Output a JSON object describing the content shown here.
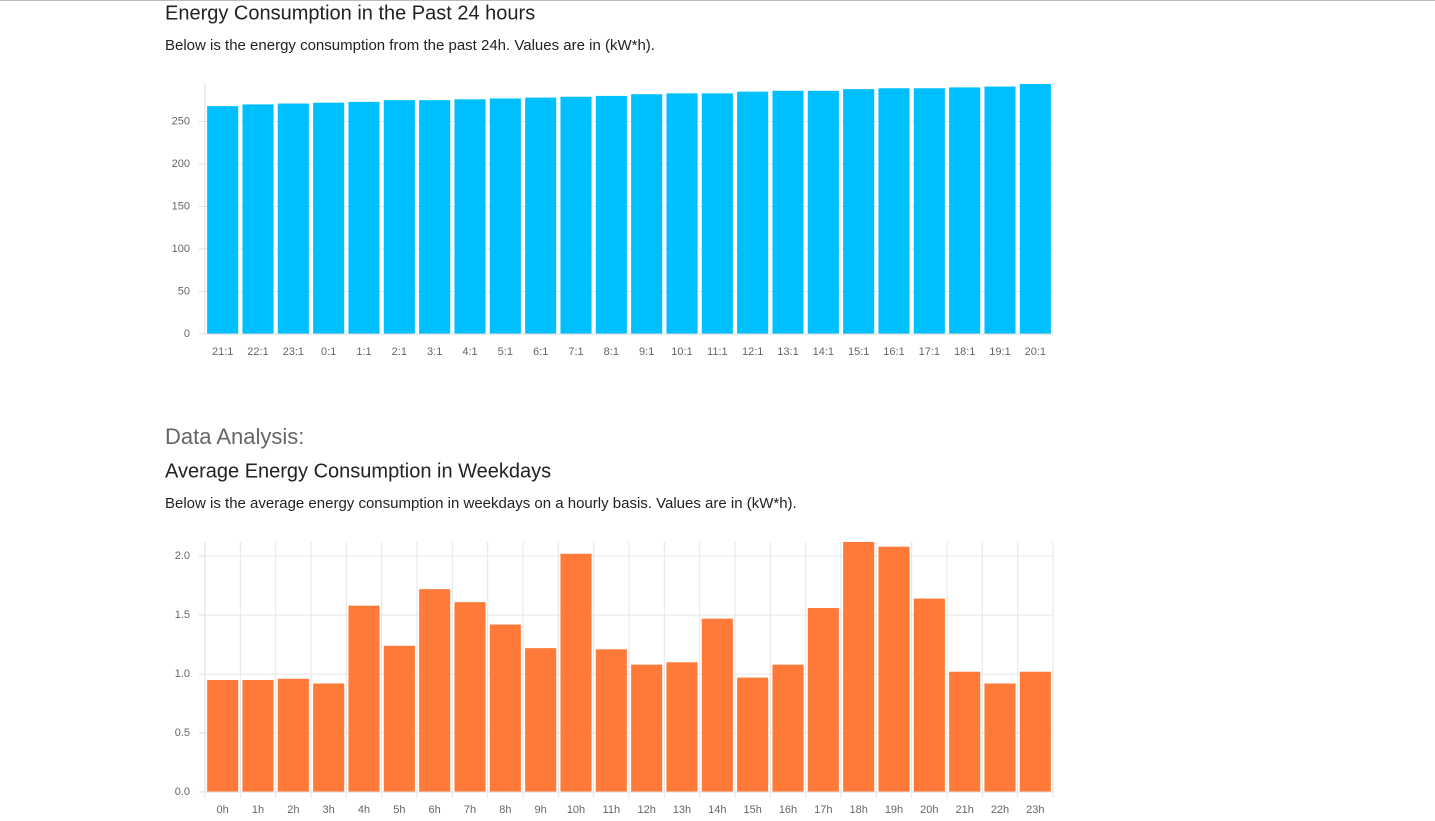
{
  "section_heading": "Data Analysis:",
  "chart_data": [
    {
      "type": "bar",
      "title": "Energy Consumption in the Past 24 hours",
      "subtitle": "Below is the energy consumption from the past 24h. Values are in (kW*h).",
      "categories": [
        "21:1",
        "22:1",
        "23:1",
        "0:1",
        "1:1",
        "2:1",
        "3:1",
        "4:1",
        "5:1",
        "6:1",
        "7:1",
        "8:1",
        "9:1",
        "10:1",
        "11:1",
        "12:1",
        "13:1",
        "14:1",
        "15:1",
        "16:1",
        "17:1",
        "18:1",
        "19:1",
        "20:1"
      ],
      "values": [
        268,
        270,
        271,
        272,
        273,
        275,
        275,
        276,
        277,
        278,
        279,
        280,
        282,
        283,
        283,
        285,
        286,
        286,
        288,
        289,
        289,
        290,
        291,
        294
      ],
      "color": "#00bfff",
      "ylim": [
        0,
        294
      ],
      "yticks": [
        0,
        50,
        100,
        150,
        200,
        250
      ],
      "grid": true,
      "x_grid": false
    },
    {
      "type": "bar",
      "title": "Average Energy Consumption in Weekdays",
      "subtitle": "Below is the average energy consumption in weekdays on a hourly basis. Values are in (kW*h).",
      "categories": [
        "0h",
        "1h",
        "2h",
        "3h",
        "4h",
        "5h",
        "6h",
        "7h",
        "8h",
        "9h",
        "10h",
        "11h",
        "12h",
        "13h",
        "14h",
        "15h",
        "16h",
        "17h",
        "18h",
        "19h",
        "20h",
        "21h",
        "22h",
        "23h"
      ],
      "values": [
        0.95,
        0.95,
        0.96,
        0.92,
        1.58,
        1.24,
        1.72,
        1.61,
        1.42,
        1.22,
        2.02,
        1.21,
        1.08,
        1.1,
        1.47,
        0.97,
        1.08,
        1.56,
        2.12,
        2.08,
        1.64,
        1.02,
        0.92,
        1.02
      ],
      "color": "#ff7a38",
      "ylim": [
        0,
        2.12
      ],
      "yticks": [
        {
          "value": 0,
          "label": "0.0"
        },
        {
          "value": 0.5,
          "label": "0.5"
        },
        {
          "value": 1,
          "label": "1.0"
        },
        {
          "value": 1.5,
          "label": "1.5"
        },
        {
          "value": 2,
          "label": "2.0"
        }
      ],
      "grid": true,
      "x_grid": true
    }
  ]
}
